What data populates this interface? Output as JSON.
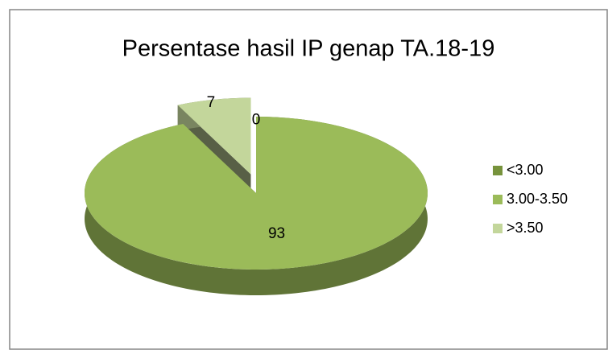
{
  "chart_data": {
    "type": "pie",
    "title": "Persentase hasil IP genap TA.18-19",
    "categories": [
      "<3.00",
      "3.00-3.50",
      ">3.50"
    ],
    "values": [
      0,
      93,
      7
    ],
    "colors": [
      "#77933c",
      "#9bbb59",
      "#c3d69b"
    ],
    "exploded": [
      false,
      false,
      true
    ],
    "legend": "right"
  }
}
